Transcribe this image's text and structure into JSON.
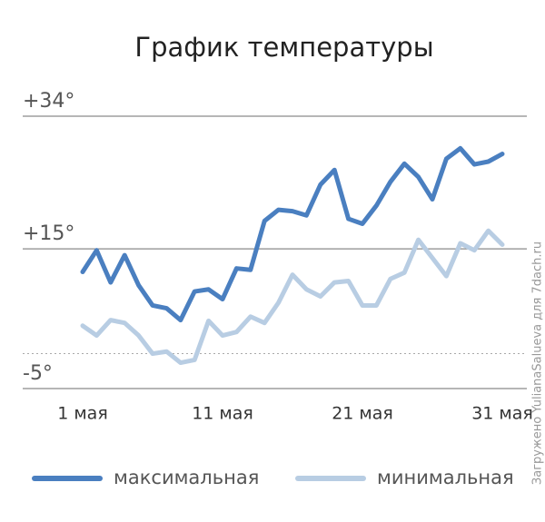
{
  "chart_data": {
    "type": "line",
    "title": "График температуры",
    "x": [
      1,
      2,
      3,
      4,
      5,
      6,
      7,
      8,
      9,
      10,
      11,
      12,
      13,
      14,
      15,
      16,
      17,
      18,
      19,
      20,
      21,
      22,
      23,
      24,
      25,
      26,
      27,
      28,
      29,
      30,
      31
    ],
    "xlim": [
      1,
      31
    ],
    "xticks": [
      {
        "value": 1,
        "label": "1 мая"
      },
      {
        "value": 11,
        "label": "11 мая"
      },
      {
        "value": 21,
        "label": "21 мая"
      },
      {
        "value": 31,
        "label": "31 мая"
      }
    ],
    "ylim": [
      -5,
      34
    ],
    "yticks": [
      {
        "value": -5,
        "label": "-5°"
      },
      {
        "value": 0,
        "label": null
      },
      {
        "value": 15,
        "label": "+15°"
      },
      {
        "value": 34,
        "label": "+34°"
      }
    ],
    "grid": true,
    "legend": "bottom",
    "series": [
      {
        "name": "максимальная",
        "color": "#4a7fc0",
        "values": [
          11.7,
          14.8,
          10.2,
          14.1,
          9.8,
          6.9,
          6.5,
          4.8,
          8.9,
          9.2,
          7.8,
          12.2,
          12.0,
          19.0,
          20.6,
          20.4,
          19.8,
          24.2,
          26.3,
          19.3,
          18.6,
          21.2,
          24.6,
          27.2,
          25.3,
          22.1,
          27.9,
          29.4,
          27.1,
          27.5,
          28.6
        ]
      },
      {
        "name": "минимальная",
        "color": "#b8cde3",
        "values": [
          4.0,
          2.6,
          4.8,
          4.4,
          2.6,
          0,
          0.3,
          -1.3,
          -0.9,
          4.7,
          2.6,
          3.1,
          5.3,
          4.4,
          7.3,
          11.3,
          9.2,
          8.2,
          10.2,
          10.4,
          6.9,
          6.9,
          10.7,
          11.6,
          16.3,
          13.7,
          11.1,
          15.8,
          14.8,
          17.6,
          15.6
        ]
      }
    ],
    "watermark": "Загружено YulianaSalueva для 7dach.ru"
  }
}
